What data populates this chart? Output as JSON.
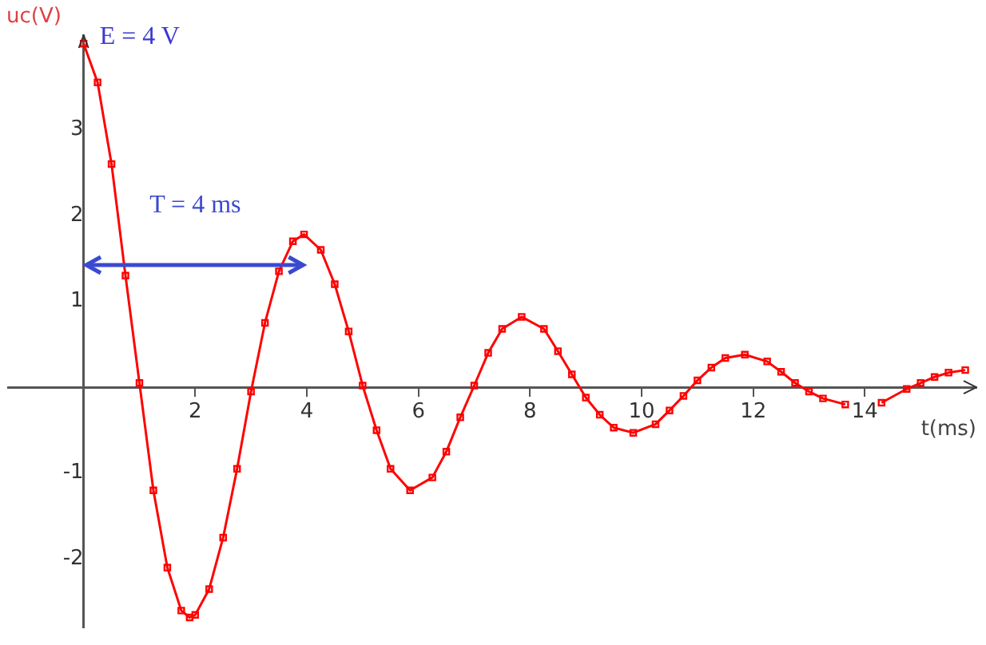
{
  "chart_data": {
    "type": "line",
    "xlabel": "t(ms)",
    "ylabel": "uc(V)",
    "x": [
      0,
      0.25,
      0.5,
      0.75,
      1.0,
      1.25,
      1.5,
      1.75,
      1.9,
      2.0,
      2.25,
      2.5,
      2.75,
      3.0,
      3.25,
      3.5,
      3.75,
      3.95,
      4.25,
      4.5,
      4.75,
      5.0,
      5.25,
      5.5,
      5.85,
      6.25,
      6.5,
      6.75,
      7.0,
      7.25,
      7.5,
      7.85,
      8.25,
      8.5,
      8.75,
      9.0,
      9.25,
      9.5,
      9.85,
      10.25,
      10.5,
      10.75,
      11.0,
      11.25,
      11.5,
      11.85,
      12.25,
      12.5,
      12.75,
      13.0,
      13.25,
      13.65,
      14.0,
      14.3,
      14.75,
      15.0,
      15.25,
      15.5,
      15.8
    ],
    "series": [
      {
        "color": "#ff0000",
        "values": [
          4,
          3.55,
          2.6,
          1.3,
          0.05,
          -1.2,
          -2.1,
          -2.6,
          -2.68,
          -2.65,
          -2.35,
          -1.75,
          -0.95,
          -0.05,
          0.75,
          1.35,
          1.7,
          1.78,
          1.6,
          1.2,
          0.65,
          0.02,
          -0.5,
          -0.95,
          -1.2,
          -1.05,
          -0.75,
          -0.35,
          0.02,
          0.4,
          0.68,
          0.82,
          0.68,
          0.42,
          0.15,
          -0.12,
          -0.32,
          -0.47,
          -0.53,
          -0.43,
          -0.27,
          -0.1,
          0.08,
          0.23,
          0.34,
          0.38,
          0.3,
          0.18,
          0.05,
          -0.05,
          -0.13,
          -0.2,
          null,
          -0.18,
          -0.02,
          0.05,
          0.12,
          0.17,
          0.2
        ]
      }
    ],
    "xlim": [
      -1.35,
      16
    ],
    "ylim": [
      -2.8,
      4.1
    ],
    "xticks": [
      2,
      4,
      6,
      8,
      10,
      12,
      14
    ],
    "yticks": [
      -2,
      -1,
      1,
      2,
      3
    ],
    "grid": false,
    "legend": false,
    "marker": "square",
    "line_style": "solid",
    "annotations": [
      {
        "text": "E = 4 V",
        "x": 0,
        "y": 4
      },
      "T = 4 ms"
    ]
  }
}
